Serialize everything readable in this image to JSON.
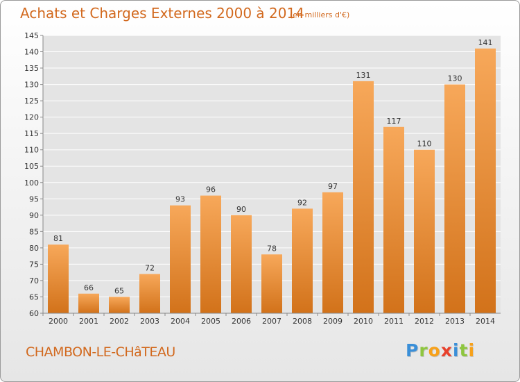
{
  "header": {
    "title": "Achats et Charges Externes 2000 à 2014",
    "subtitle": "(en milliers d'€)"
  },
  "footer": {
    "commune": "CHAMBON-LE-CHâTEAU",
    "logo_letters": [
      {
        "ch": "P",
        "color": "#3a8fd8"
      },
      {
        "ch": "r",
        "color": "#8ec63f"
      },
      {
        "ch": "o",
        "color": "#f7a11a"
      },
      {
        "ch": "x",
        "color": "#e8412c"
      },
      {
        "ch": "i",
        "color": "#3a8fd8"
      },
      {
        "ch": "t",
        "color": "#8ec63f"
      },
      {
        "ch": "i",
        "color": "#f7a11a"
      }
    ]
  },
  "colors": {
    "bar_light": "#f7a85a",
    "bar_dark": "#d2721a",
    "text_accent": "#d2691e",
    "grid": "#ffffff",
    "axis_text": "#333333"
  },
  "chart_data": {
    "type": "bar",
    "categories": [
      "2000",
      "2001",
      "2002",
      "2003",
      "2004",
      "2005",
      "2006",
      "2007",
      "2008",
      "2009",
      "2010",
      "2011",
      "2012",
      "2013",
      "2014"
    ],
    "values": [
      81,
      66,
      65,
      72,
      93,
      96,
      90,
      78,
      92,
      97,
      131,
      117,
      110,
      130,
      141
    ],
    "title": "Achats et Charges Externes 2000 à 2014",
    "subtitle": "(en milliers d'€)",
    "xlabel": "",
    "ylabel": "",
    "ylim": [
      60,
      145
    ],
    "ytick_step": 5,
    "grid": true
  }
}
